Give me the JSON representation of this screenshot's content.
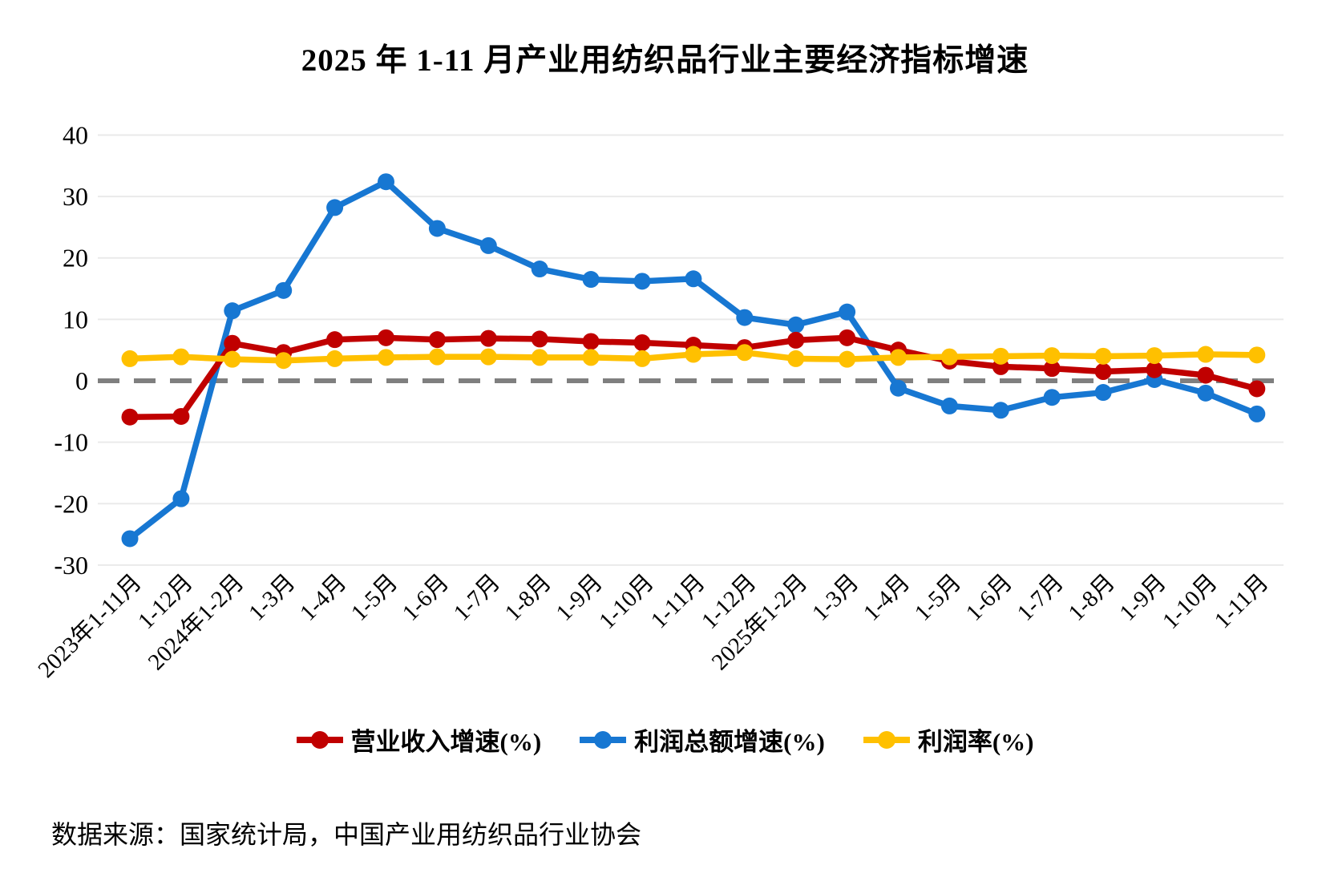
{
  "title": "2025 年 1-11 月产业用纺织品行业主要经济指标增速",
  "source": "数据来源：国家统计局，中国产业用纺织品行业协会",
  "chart_data": {
    "type": "line",
    "title": "2025 年 1-11 月产业用纺织品行业主要经济指标增速",
    "categories": [
      "2023年1-11月",
      "1-12月",
      "2024年1-2月",
      "1-3月",
      "1-4月",
      "1-5月",
      "1-6月",
      "1-7月",
      "1-8月",
      "1-9月",
      "1-10月",
      "1-11月",
      "1-12月",
      "2025年1-2月",
      "1-3月",
      "1-4月",
      "1-5月",
      "1-6月",
      "1-7月",
      "1-8月",
      "1-9月",
      "1-10月",
      "1-11月"
    ],
    "series": [
      {
        "name": "营业收入增速(%)",
        "color": "#C00000",
        "values": [
          -5.9,
          -5.8,
          6.1,
          4.6,
          6.7,
          7.0,
          6.7,
          6.9,
          6.8,
          6.4,
          6.2,
          5.8,
          5.4,
          6.6,
          7.0,
          5.0,
          3.2,
          2.3,
          2.0,
          1.5,
          1.8,
          0.9,
          -1.3
        ]
      },
      {
        "name": "利润总额增速(%)",
        "color": "#1777D2",
        "values": [
          -25.7,
          -19.2,
          11.4,
          14.7,
          28.2,
          32.4,
          24.8,
          22.0,
          18.2,
          16.5,
          16.2,
          16.6,
          10.3,
          9.1,
          11.2,
          -1.2,
          -4.1,
          -4.8,
          -2.7,
          -1.9,
          0.2,
          -2.0,
          -5.4
        ]
      },
      {
        "name": "利润率(%)",
        "color": "#FFC000",
        "values": [
          3.6,
          3.9,
          3.5,
          3.3,
          3.6,
          3.8,
          3.9,
          3.9,
          3.8,
          3.8,
          3.6,
          4.3,
          4.6,
          3.6,
          3.5,
          3.8,
          3.9,
          4.0,
          4.1,
          4.0,
          4.1,
          4.3,
          4.2
        ]
      }
    ],
    "xlabel": "",
    "ylabel": "",
    "ylim": [
      -30,
      40
    ],
    "ytick_step": 10,
    "yticks": [
      40,
      30,
      20,
      10,
      0,
      -10,
      -20,
      -30
    ],
    "grid": "horizontal",
    "zero_line": "dashed-gray",
    "legend_position": "bottom",
    "colors": {
      "grid": "#EAEAEA",
      "zero_line": "#7F7F7F",
      "text": "#000000"
    }
  }
}
